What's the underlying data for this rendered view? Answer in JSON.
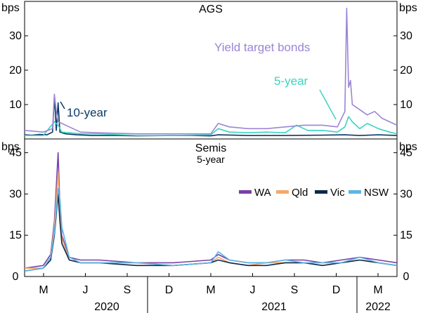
{
  "chart_data": {
    "type": "line",
    "x_axis": {
      "months": [
        "M",
        "J",
        "S",
        "D",
        "M",
        "J",
        "S",
        "D",
        "M"
      ],
      "years": [
        "2020",
        "2021",
        "2022"
      ],
      "range": [
        "2020-02",
        "2022-03"
      ]
    },
    "panels": [
      {
        "title": "AGS",
        "subtitle": "",
        "unit": "bps",
        "ylim": [
          0,
          40
        ],
        "ticks": [
          10,
          20,
          30
        ],
        "series": [
          {
            "name": "10-year",
            "label": "10-year",
            "color": "#0b3a66",
            "points": [
              [
                0,
                1.2
              ],
              [
                0.02,
                1.1
              ],
              [
                0.04,
                1.3
              ],
              [
                0.06,
                1.2
              ],
              [
                0.075,
                2.0
              ],
              [
                0.08,
                12.5
              ],
              [
                0.085,
                2.5
              ],
              [
                0.09,
                10.5
              ],
              [
                0.095,
                2.0
              ],
              [
                0.11,
                1.5
              ],
              [
                0.14,
                1.2
              ],
              [
                0.18,
                1.0
              ],
              [
                0.25,
                1.0
              ],
              [
                0.3,
                0.9
              ],
              [
                0.4,
                1.0
              ],
              [
                0.45,
                1.0
              ],
              [
                0.5,
                0.9
              ],
              [
                0.52,
                1.2
              ],
              [
                0.6,
                1.0
              ],
              [
                0.7,
                1.0
              ],
              [
                0.8,
                1.1
              ],
              [
                0.86,
                1.2
              ],
              [
                0.9,
                1.0
              ],
              [
                0.95,
                1.2
              ],
              [
                1,
                1.0
              ]
            ]
          },
          {
            "name": "5-year",
            "label": "5-year",
            "color": "#3cd3c0",
            "points": [
              [
                0,
                1.0
              ],
              [
                0.05,
                1.0
              ],
              [
                0.08,
                5.0
              ],
              [
                0.09,
                4.0
              ],
              [
                0.1,
                2.0
              ],
              [
                0.15,
                1.5
              ],
              [
                0.2,
                1.5
              ],
              [
                0.3,
                1.0
              ],
              [
                0.4,
                1.0
              ],
              [
                0.5,
                1.2
              ],
              [
                0.52,
                3.0
              ],
              [
                0.55,
                2.0
              ],
              [
                0.6,
                1.8
              ],
              [
                0.65,
                2.0
              ],
              [
                0.7,
                1.8
              ],
              [
                0.73,
                4.0
              ],
              [
                0.76,
                2.5
              ],
              [
                0.8,
                2.5
              ],
              [
                0.84,
                2.0
              ],
              [
                0.86,
                3.5
              ],
              [
                0.87,
                6.5
              ],
              [
                0.88,
                5.0
              ],
              [
                0.9,
                3.0
              ],
              [
                0.92,
                4.5
              ],
              [
                0.95,
                3.0
              ],
              [
                0.98,
                2.0
              ],
              [
                1,
                1.5
              ]
            ]
          },
          {
            "name": "Yield target bonds",
            "label": "Yield target bonds",
            "color": "#9b85d6",
            "points": [
              [
                0,
                2.5
              ],
              [
                0.05,
                2.0
              ],
              [
                0.075,
                3.0
              ],
              [
                0.08,
                13.0
              ],
              [
                0.085,
                8.0
              ],
              [
                0.09,
                5.0
              ],
              [
                0.1,
                4.5
              ],
              [
                0.12,
                3.5
              ],
              [
                0.15,
                2.0
              ],
              [
                0.2,
                1.8
              ],
              [
                0.3,
                1.5
              ],
              [
                0.4,
                1.5
              ],
              [
                0.5,
                1.5
              ],
              [
                0.52,
                4.5
              ],
              [
                0.55,
                3.5
              ],
              [
                0.6,
                3.0
              ],
              [
                0.65,
                3.0
              ],
              [
                0.7,
                3.5
              ],
              [
                0.75,
                4.0
              ],
              [
                0.8,
                4.0
              ],
              [
                0.84,
                3.5
              ],
              [
                0.86,
                8.0
              ],
              [
                0.865,
                38.0
              ],
              [
                0.87,
                15.0
              ],
              [
                0.875,
                17.0
              ],
              [
                0.88,
                10.0
              ],
              [
                0.9,
                8.5
              ],
              [
                0.92,
                7.0
              ],
              [
                0.94,
                8.0
              ],
              [
                0.96,
                6.0
              ],
              [
                0.98,
                5.0
              ],
              [
                1,
                4.0
              ]
            ]
          }
        ]
      },
      {
        "title": "Semis",
        "subtitle": "5-year",
        "unit": "bps",
        "ylim": [
          0,
          50
        ],
        "ticks": [
          15,
          30,
          45
        ],
        "series": [
          {
            "name": "WA",
            "label": "WA",
            "color": "#7b3fa6",
            "points": [
              [
                0,
                3
              ],
              [
                0.05,
                4
              ],
              [
                0.07,
                8
              ],
              [
                0.08,
                20
              ],
              [
                0.09,
                45
              ],
              [
                0.095,
                25
              ],
              [
                0.1,
                15
              ],
              [
                0.12,
                7
              ],
              [
                0.15,
                6
              ],
              [
                0.2,
                6
              ],
              [
                0.3,
                5
              ],
              [
                0.4,
                5
              ],
              [
                0.5,
                6
              ],
              [
                0.52,
                8
              ],
              [
                0.55,
                6
              ],
              [
                0.6,
                5
              ],
              [
                0.65,
                5
              ],
              [
                0.7,
                6
              ],
              [
                0.75,
                6
              ],
              [
                0.8,
                5
              ],
              [
                0.85,
                6
              ],
              [
                0.9,
                7
              ],
              [
                0.95,
                6
              ],
              [
                1,
                5
              ]
            ]
          },
          {
            "name": "Qld",
            "label": "Qld",
            "color": "#f5a86a",
            "points": [
              [
                0,
                3
              ],
              [
                0.05,
                3
              ],
              [
                0.07,
                7
              ],
              [
                0.08,
                18
              ],
              [
                0.09,
                38
              ],
              [
                0.095,
                22
              ],
              [
                0.1,
                14
              ],
              [
                0.12,
                6
              ],
              [
                0.15,
                5
              ],
              [
                0.2,
                5
              ],
              [
                0.3,
                5
              ],
              [
                0.4,
                4
              ],
              [
                0.5,
                5
              ],
              [
                0.52,
                7
              ],
              [
                0.55,
                5
              ],
              [
                0.6,
                4
              ],
              [
                0.65,
                5
              ],
              [
                0.7,
                5
              ],
              [
                0.75,
                5
              ],
              [
                0.8,
                5
              ],
              [
                0.85,
                5
              ],
              [
                0.9,
                6
              ],
              [
                0.95,
                5
              ],
              [
                1,
                4
              ]
            ]
          },
          {
            "name": "Vic",
            "label": "Vic",
            "color": "#0b2a4a",
            "points": [
              [
                0,
                2
              ],
              [
                0.05,
                3
              ],
              [
                0.07,
                6
              ],
              [
                0.08,
                15
              ],
              [
                0.09,
                30
              ],
              [
                0.095,
                20
              ],
              [
                0.1,
                12
              ],
              [
                0.12,
                6
              ],
              [
                0.15,
                5
              ],
              [
                0.2,
                5
              ],
              [
                0.3,
                4
              ],
              [
                0.4,
                4
              ],
              [
                0.5,
                5
              ],
              [
                0.52,
                6
              ],
              [
                0.55,
                5
              ],
              [
                0.6,
                4
              ],
              [
                0.65,
                4
              ],
              [
                0.7,
                5
              ],
              [
                0.75,
                5
              ],
              [
                0.8,
                4
              ],
              [
                0.85,
                5
              ],
              [
                0.9,
                6
              ],
              [
                0.95,
                5
              ],
              [
                1,
                4
              ]
            ]
          },
          {
            "name": "NSW",
            "label": "NSW",
            "color": "#5bb6e6",
            "points": [
              [
                0,
                2
              ],
              [
                0.05,
                3
              ],
              [
                0.07,
                7
              ],
              [
                0.08,
                16
              ],
              [
                0.09,
                32
              ],
              [
                0.095,
                28
              ],
              [
                0.1,
                18
              ],
              [
                0.12,
                7
              ],
              [
                0.15,
                5
              ],
              [
                0.2,
                5
              ],
              [
                0.3,
                5
              ],
              [
                0.4,
                4
              ],
              [
                0.5,
                5
              ],
              [
                0.52,
                9
              ],
              [
                0.55,
                6
              ],
              [
                0.6,
                5
              ],
              [
                0.65,
                5
              ],
              [
                0.7,
                6
              ],
              [
                0.75,
                5
              ],
              [
                0.8,
                5
              ],
              [
                0.85,
                5
              ],
              [
                0.9,
                7
              ],
              [
                0.95,
                5
              ],
              [
                1,
                4
              ]
            ]
          }
        ]
      }
    ]
  }
}
